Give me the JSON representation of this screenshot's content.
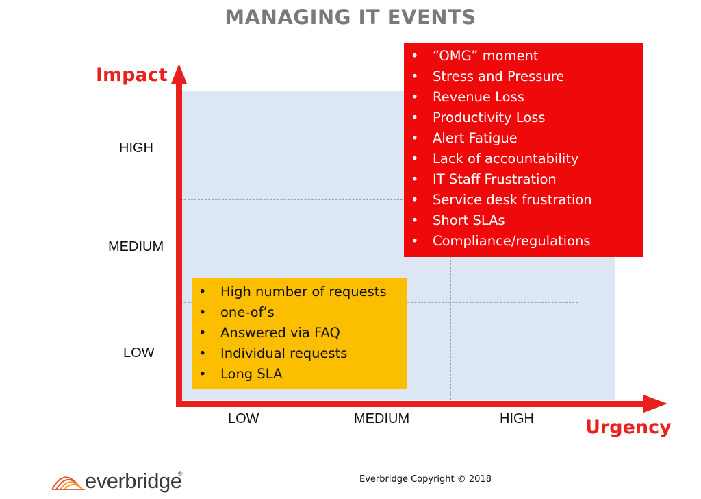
{
  "title": "MANAGING IT EVENTS",
  "axes": {
    "y_label": "Impact",
    "x_label": "Urgency",
    "y_ticks": [
      "HIGH",
      "MEDIUM",
      "LOW"
    ],
    "x_ticks": [
      "LOW",
      "MEDIUM",
      "HIGH"
    ],
    "axis_color": "#e8211f",
    "grid_fill": "#dde7f3"
  },
  "high_box": {
    "color": "#ee0a0a",
    "items": [
      "“OMG” moment",
      "Stress and Pressure",
      "Revenue Loss",
      "Productivity Loss",
      "Alert Fatigue",
      "Lack of accountability",
      "IT Staff Frustration",
      "Service desk frustration",
      "Short SLAs",
      "Compliance/regulations"
    ]
  },
  "low_box": {
    "color": "#fbbe00",
    "items": [
      "High number of requests",
      "one-of’s",
      "Answered via FAQ",
      "Individual requests",
      "Long SLA"
    ]
  },
  "footer": {
    "copyright": "Everbridge Copyright © 2018",
    "logo_text": "everbridge",
    "logo_mark": "®",
    "logo_icon": "everbridge-arches-logo"
  }
}
